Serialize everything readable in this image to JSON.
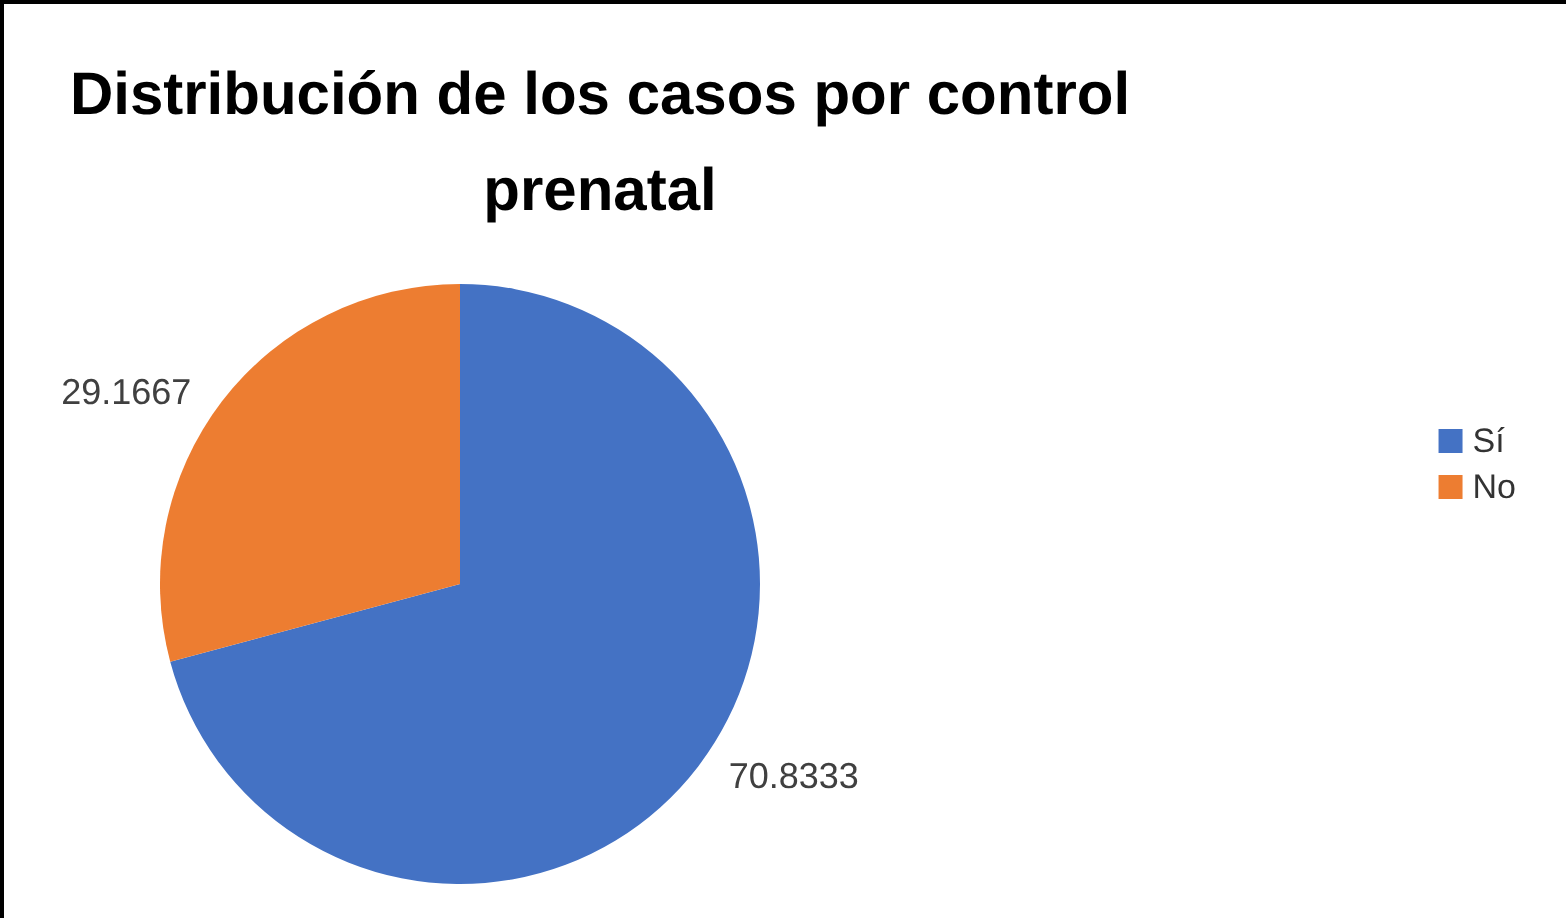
{
  "chart_data": {
    "type": "pie",
    "title": "Distribución de los casos por control prenatal",
    "categories": [
      "Sí",
      "No"
    ],
    "values": [
      70.8333,
      29.1667
    ],
    "colors": [
      "#4472c4",
      "#ed7d31"
    ],
    "data_labels": true,
    "legend": "right"
  }
}
